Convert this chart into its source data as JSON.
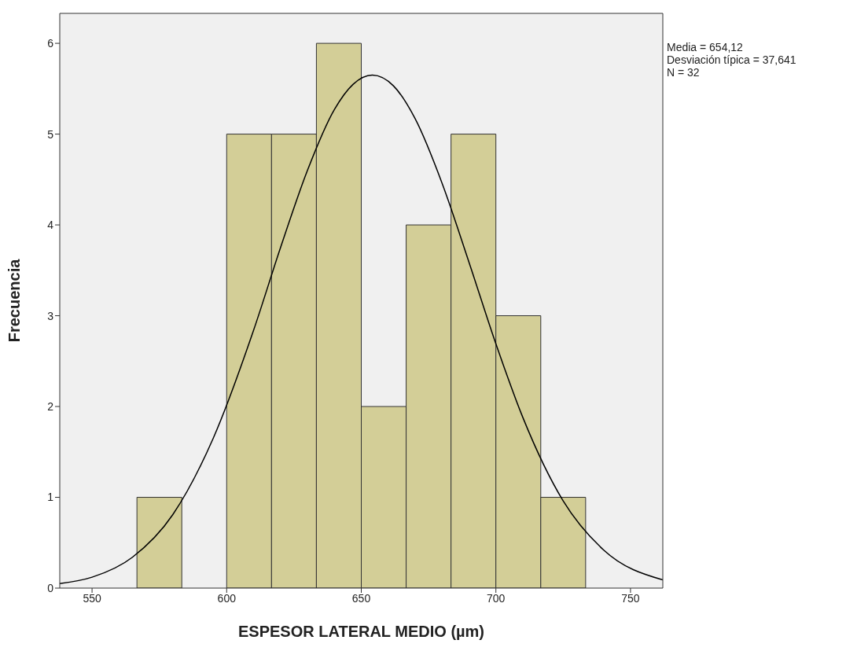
{
  "chart_data": {
    "type": "histogram",
    "xlabel": "ESPESOR LATERAL MEDIO (µm)",
    "ylabel": "Frecuencia",
    "bins": [
      566.67,
      583.33,
      600,
      616.67,
      633.33,
      650,
      666.67,
      683.33,
      700,
      716.67,
      733.33
    ],
    "values": [
      1,
      0,
      5,
      5,
      6,
      2,
      4,
      5,
      3,
      1
    ],
    "color": "#d3ce97",
    "series": [
      {
        "type": "line",
        "color": "#000000",
        "x": [
          538,
          550,
          565,
          580,
          595,
          610,
          620,
          630,
          640,
          647,
          654.12,
          662,
          670,
          680,
          690,
          700,
          710,
          725,
          740,
          762
        ],
        "values": [
          0.05,
          0.12,
          0.34,
          0.81,
          1.65,
          2.84,
          3.75,
          4.6,
          5.27,
          5.55,
          5.65,
          5.53,
          5.17,
          4.46,
          3.59,
          2.69,
          1.88,
          0.96,
          0.42,
          0.09
        ]
      }
    ],
    "xlim": [
      538,
      762
    ],
    "xticks": [
      550,
      600,
      650,
      700,
      750
    ],
    "ylim": [
      0,
      6.33
    ],
    "yticks": [
      0,
      1,
      2,
      3,
      4,
      5,
      6
    ],
    "annotations": [
      "Media = 654,12",
      "Desviación típica = 37,641",
      "N = 32"
    ]
  }
}
